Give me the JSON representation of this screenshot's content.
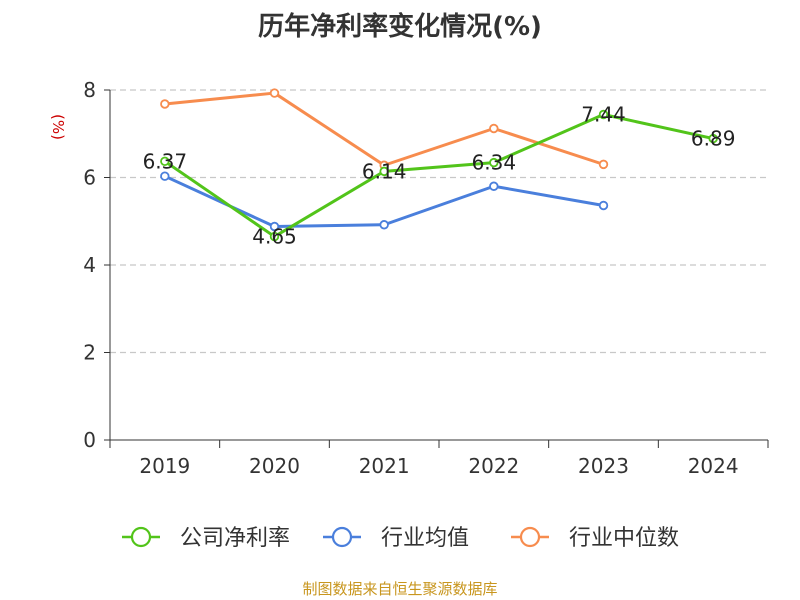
{
  "chart_data": {
    "type": "line",
    "title": "历年净利率变化情况(%)",
    "ylabel": "(%)",
    "xlabel": "",
    "categories": [
      "2019",
      "2020",
      "2021",
      "2022",
      "2023",
      "2024"
    ],
    "ylim": [
      0,
      8
    ],
    "yticks": [
      0,
      2,
      4,
      6,
      8
    ],
    "grid": true,
    "legend_position": "bottom",
    "series": [
      {
        "name": "公司净利率",
        "color": "#52c41a",
        "values": [
          6.37,
          4.65,
          6.14,
          6.34,
          7.44,
          6.89
        ],
        "labels": [
          "6.37",
          "4.65",
          "6.14",
          "6.34",
          "7.44",
          "6.89"
        ]
      },
      {
        "name": "行业均值",
        "color": "#4a7fdc",
        "values": [
          6.03,
          4.88,
          4.92,
          5.8,
          5.36,
          null
        ]
      },
      {
        "name": "行业中位数",
        "color": "#f78c4e",
        "values": [
          7.68,
          7.93,
          6.28,
          7.12,
          6.3,
          null
        ]
      }
    ]
  },
  "colors": {
    "axis_label": "#cc0000",
    "source": "#c8961e"
  },
  "source": "制图数据来自恒生聚源数据库"
}
